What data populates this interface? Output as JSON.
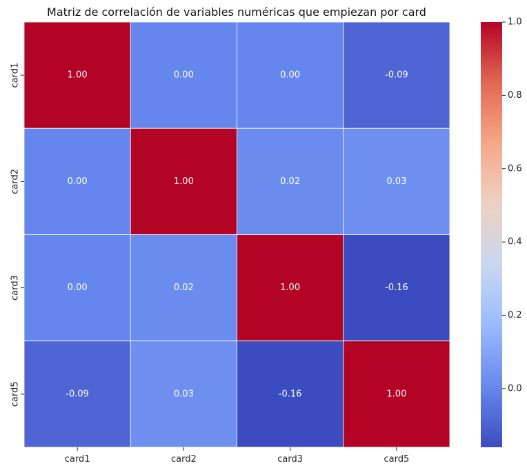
{
  "chart_data": {
    "type": "heatmap",
    "title": "Matriz de correlación de variables numéricas que empiezan por card",
    "x_labels": [
      "card1",
      "card2",
      "card3",
      "card5"
    ],
    "y_labels": [
      "card1",
      "card2",
      "card3",
      "card5"
    ],
    "values": [
      [
        1.0,
        0.0,
        0.0,
        -0.09
      ],
      [
        0.0,
        1.0,
        0.02,
        0.03
      ],
      [
        0.0,
        0.02,
        1.0,
        -0.16
      ],
      [
        -0.09,
        0.03,
        -0.16,
        1.0
      ]
    ],
    "value_labels": [
      [
        "1.00",
        "0.00",
        "0.00",
        "-0.09"
      ],
      [
        "0.00",
        "1.00",
        "0.02",
        "0.03"
      ],
      [
        "0.00",
        "0.02",
        "1.00",
        "-0.16"
      ],
      [
        "-0.09",
        "0.03",
        "-0.16",
        "1.00"
      ]
    ],
    "colormap": "coolwarm",
    "vmin": -0.16,
    "vmax": 1.0,
    "colorbar_ticks": [
      0.0,
      0.2,
      0.4,
      0.6,
      0.8,
      1.0
    ],
    "colorbar_tick_labels": [
      "0.0",
      "0.2",
      "0.4",
      "0.6",
      "0.8",
      "1.0"
    ],
    "grid": false,
    "colors": {
      "cmap_stops": [
        "#3b4cc0",
        "#6788ee",
        "#9abbff",
        "#c9d7f0",
        "#edd1c2",
        "#f7a889",
        "#e26952",
        "#b40426"
      ],
      "cell_border": "#ffffff",
      "annotation_text": "#ffffff"
    }
  }
}
